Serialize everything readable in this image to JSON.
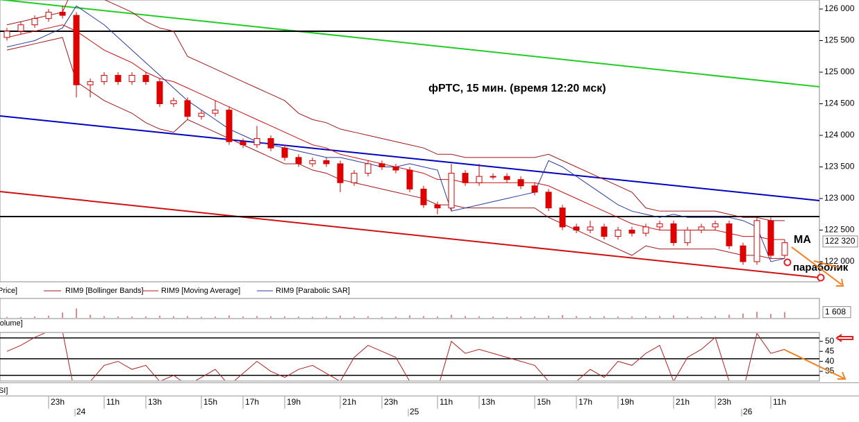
{
  "chart_data": [
    {
      "type": "candlestick",
      "title": "фРТС,  15 мин. (время 12:20 мск)",
      "annotations": [
        "МА",
        "параболик"
      ],
      "legend_price": "Price]",
      "price_label": {
        "value": 122320,
        "label": "122 320"
      },
      "categories": [
        null,
        null,
        null,
        "23h",
        null,
        null,
        null,
        "11h",
        null,
        null,
        "13h",
        null,
        null,
        null,
        "15h",
        null,
        null,
        "17h",
        null,
        null,
        "19h",
        null,
        null,
        null,
        "21h",
        null,
        null,
        "23h",
        null,
        null,
        null,
        "11h",
        null,
        null,
        "13h",
        null,
        null,
        null,
        "15h",
        null,
        null,
        "17h",
        null,
        null,
        "19h",
        null,
        null,
        null,
        "21h",
        null,
        null,
        "23h",
        null,
        null,
        null,
        "11h",
        null
      ],
      "dates": [
        null,
        null,
        null,
        null,
        null,
        "24",
        null,
        null,
        null,
        null,
        null,
        null,
        null,
        null,
        null,
        null,
        null,
        null,
        null,
        null,
        null,
        null,
        null,
        null,
        null,
        null,
        null,
        null,
        null,
        "25",
        null,
        null,
        null,
        null,
        null,
        null,
        null,
        null,
        null,
        null,
        null,
        null,
        null,
        null,
        null,
        null,
        null,
        null,
        null,
        null,
        null,
        null,
        null,
        "26",
        null,
        null,
        null
      ],
      "open": [
        125550,
        125650,
        125750,
        125850,
        125950,
        125900,
        124800,
        124850,
        124950,
        124850,
        124950,
        124850,
        124500,
        124550,
        124300,
        124350,
        124400,
        123900,
        123850,
        123950,
        123800,
        123650,
        123550,
        123600,
        123550,
        123250,
        123400,
        123550,
        123500,
        123450,
        123150,
        122900,
        122850,
        123400,
        123250,
        123350,
        123350,
        123300,
        123200,
        123100,
        122850,
        122550,
        122500,
        122550,
        122400,
        122500,
        122450,
        122550,
        122600,
        122300,
        122500,
        122550,
        122600,
        122250,
        122000,
        122650,
        122100
      ],
      "high": [
        125700,
        125800,
        125900,
        126000,
        126050,
        125950,
        124900,
        125000,
        125000,
        125000,
        125000,
        124900,
        124600,
        124600,
        124400,
        124550,
        124450,
        123950,
        124150,
        124000,
        123850,
        123700,
        123650,
        123650,
        123600,
        123450,
        123600,
        123600,
        123550,
        123500,
        123200,
        122950,
        123550,
        123450,
        123550,
        123400,
        123400,
        123350,
        123250,
        123150,
        122900,
        122600,
        122650,
        122600,
        122550,
        122550,
        122600,
        122650,
        122650,
        122550,
        122600,
        122650,
        122650,
        122300,
        122700,
        122700,
        122350
      ],
      "low": [
        125500,
        125600,
        125700,
        125800,
        125850,
        124600,
        124600,
        124800,
        124800,
        124800,
        124800,
        124450,
        124450,
        124250,
        124250,
        124300,
        123850,
        123800,
        123800,
        123750,
        123600,
        123500,
        123500,
        123500,
        123100,
        123200,
        123350,
        123450,
        123400,
        123100,
        122850,
        122750,
        122800,
        123200,
        123200,
        123300,
        123250,
        123150,
        123050,
        122800,
        122500,
        122450,
        122450,
        122350,
        122350,
        122400,
        122400,
        122500,
        122250,
        122250,
        122450,
        122500,
        122200,
        121950,
        121950,
        122050,
        122050
      ],
      "close": [
        125650,
        125750,
        125850,
        125950,
        125900,
        124800,
        124850,
        124950,
        124850,
        124950,
        124850,
        124500,
        124550,
        124300,
        124350,
        124400,
        123900,
        123850,
        123950,
        123800,
        123650,
        123550,
        123600,
        123550,
        123250,
        123400,
        123550,
        123500,
        123450,
        123150,
        122900,
        122850,
        123400,
        123250,
        123350,
        123350,
        123300,
        123200,
        123100,
        122850,
        122550,
        122500,
        122550,
        122400,
        122500,
        122450,
        122550,
        122600,
        122300,
        122500,
        122550,
        122600,
        122250,
        122000,
        122650,
        122100,
        122300
      ],
      "ylim": [
        121692,
        126143
      ],
      "yticks": [
        {
          "value": 122000,
          "label": "122 000"
        },
        {
          "value": 122500,
          "label": "122 500"
        },
        {
          "value": 123000,
          "label": "123 000"
        },
        {
          "value": 123500,
          "label": "123 500"
        },
        {
          "value": 124000,
          "label": "124 000"
        },
        {
          "value": 124500,
          "label": "124 500"
        },
        {
          "value": 125000,
          "label": "125 000"
        },
        {
          "value": 125500,
          "label": "125 500"
        },
        {
          "value": 126000,
          "label": "126 000"
        }
      ],
      "bands": {
        "name": "RIM9 [Bollinger Bands]",
        "color": "#a01818",
        "upper": [
          125750,
          125800,
          125850,
          125900,
          125950,
          126450,
          126300,
          126150,
          126050,
          125950,
          125800,
          125700,
          125650,
          125250,
          125150,
          125050,
          124950,
          124850,
          124750,
          124650,
          124550,
          124350,
          124250,
          124200,
          124100,
          124050,
          124000,
          123950,
          123900,
          123850,
          123800,
          123700,
          123700,
          123650,
          123650,
          123650,
          123650,
          123650,
          123650,
          123700,
          123600,
          123500,
          123400,
          123300,
          123200,
          123100,
          122850,
          122800,
          122800,
          122800,
          122800,
          122800,
          122750,
          122700,
          122700,
          122650,
          122650
        ],
        "lower": [
          125350,
          125400,
          125450,
          125500,
          125550,
          124850,
          124700,
          124550,
          124450,
          124350,
          124200,
          124100,
          124050,
          124250,
          124150,
          124050,
          123950,
          123850,
          123750,
          123650,
          123550,
          123550,
          123450,
          123400,
          123300,
          123250,
          123200,
          123150,
          123100,
          123050,
          123000,
          122900,
          122900,
          122850,
          122850,
          122850,
          122850,
          122850,
          122850,
          122700,
          122600,
          122500,
          122400,
          122300,
          122200,
          122100,
          122250,
          122200,
          122200,
          122200,
          122200,
          122200,
          122150,
          122100,
          122100,
          122050,
          122050
        ]
      },
      "series": [
        {
          "name": "RIM9 [Moving Average]",
          "color": "#c81010",
          "values": [
            125550,
            125600,
            125650,
            125700,
            125750,
            125650,
            125500,
            125350,
            125250,
            125150,
            125000,
            124900,
            124850,
            124750,
            124650,
            124550,
            124450,
            124350,
            124250,
            124150,
            124050,
            123950,
            123850,
            123800,
            123700,
            123650,
            123600,
            123550,
            123500,
            123450,
            123400,
            123300,
            123300,
            123250,
            123250,
            123250,
            123250,
            123250,
            123250,
            123200,
            123100,
            123000,
            122900,
            122800,
            122700,
            122600,
            122550,
            122500,
            122500,
            122500,
            122500,
            122500,
            122450,
            122400,
            122400,
            122350,
            122350
          ]
        },
        {
          "name": "RIM9 [Parabolic SAR]",
          "color": "#2a3aa0",
          "values": [
            125400,
            125450,
            125500,
            125600,
            125700,
            126050,
            125900,
            125750,
            125550,
            125350,
            125150,
            124950,
            124750,
            124550,
            124400,
            124250,
            124100,
            124000,
            123900,
            123850,
            123800,
            123750,
            123700,
            123650,
            123650,
            123600,
            123550,
            123500,
            123500,
            123550,
            123500,
            123450,
            122800,
            122850,
            122900,
            122950,
            123000,
            123050,
            123100,
            123600,
            123500,
            123350,
            123200,
            123050,
            122900,
            122800,
            122750,
            122700,
            122750,
            122700,
            122700,
            122700,
            122700,
            122650,
            122550,
            122000,
            122050
          ]
        }
      ],
      "trend_lines": [
        {
          "color": "#22cc22",
          "values": [
            126150,
            124769
          ]
        },
        {
          "color": "#0000c0",
          "values": [
            124308,
            122967
          ]
        },
        {
          "color": "#d01010",
          "values": [
            123110,
            121747
          ]
        },
        {
          "color": "#000000",
          "values": [
            125648,
            125648
          ]
        },
        {
          "color": "#000000",
          "values": [
            122714,
            122714
          ]
        }
      ]
    },
    {
      "type": "bar",
      "label": "Volume]",
      "color": "#c81010",
      "values": [
        300,
        250,
        400,
        600,
        1500,
        2600,
        900,
        500,
        400,
        350,
        400,
        600,
        450,
        500,
        300,
        350,
        700,
        400,
        500,
        450,
        400,
        350,
        300,
        350,
        600,
        400,
        450,
        300,
        350,
        700,
        500,
        400,
        900,
        500,
        450,
        350,
        300,
        400,
        350,
        600,
        800,
        500,
        400,
        450,
        350,
        400,
        450,
        500,
        700,
        400,
        350,
        500,
        900,
        1200,
        1700,
        1100,
        1608
      ],
      "ylim": [
        0,
        5200
      ],
      "last_label": {
        "value": 1608,
        "label": "1 608"
      }
    },
    {
      "type": "line",
      "label": "RSI]",
      "color": "#b02020",
      "values": [
        45,
        48,
        52,
        55,
        55,
        20,
        30,
        38,
        40,
        36,
        38,
        30,
        33,
        28,
        32,
        36,
        28,
        34,
        40,
        35,
        32,
        36,
        38,
        34,
        30,
        42,
        48,
        45,
        42,
        30,
        28,
        26,
        50,
        44,
        46,
        44,
        42,
        40,
        38,
        30,
        26,
        30,
        36,
        32,
        40,
        38,
        44,
        48,
        30,
        42,
        46,
        52,
        30,
        25,
        54,
        44,
        46
      ],
      "ylim": [
        30.5,
        54.1
      ],
      "yticks": [
        35,
        40,
        45,
        50
      ],
      "levels": [
        51.7,
        41.3,
        33
      ]
    }
  ]
}
